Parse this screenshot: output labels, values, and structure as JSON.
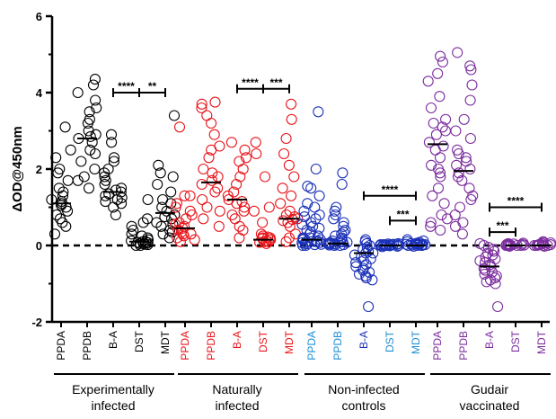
{
  "chart_data": {
    "type": "scatter",
    "ylabel": "ΔOD@450nm",
    "ylim": [
      -2,
      6
    ],
    "yticks": [
      "-2",
      "0",
      "2",
      "4",
      "6"
    ],
    "reference_line": 0,
    "colors": {
      "Experimentally infected": "#000000",
      "Naturally infected": "#e8151b",
      "Non-infected controls": "#1c32b8",
      "Gudair vaccinated": "#7b2d9e"
    },
    "label_colors": {
      "Experimentally infected": [
        "#000000",
        "#000000",
        "#000000",
        "#000000",
        "#000000"
      ],
      "Naturally infected": [
        "#e8151b",
        "#e8151b",
        "#e8151b",
        "#e8151b",
        "#e8151b"
      ],
      "Non-infected controls": [
        "#1d8fd6",
        "#1d8fd6",
        "#1c32b8",
        "#1d8fd6",
        "#1d8fd6"
      ],
      "Gudair vaccinated": [
        "#7b2d9e",
        "#7b2d9e",
        "#7b2d9e",
        "#7b2d9e",
        "#7b2d9e"
      ]
    },
    "groups": [
      {
        "name_lines": [
          "Experimentally",
          "infected"
        ],
        "color_key": "Experimentally infected",
        "series": [
          {
            "name": "PPDA",
            "median": 1.1,
            "values": [
              0.3,
              0.5,
              0.6,
              0.7,
              0.8,
              0.9,
              1.0,
              1.05,
              1.1,
              1.15,
              1.2,
              1.3,
              1.4,
              1.5,
              1.7,
              1.9,
              2.0,
              2.3,
              2.5,
              3.1
            ]
          },
          {
            "name": "PPDB",
            "median": 2.8,
            "values": [
              1.5,
              1.7,
              1.8,
              2.0,
              2.2,
              2.4,
              2.5,
              2.7,
              2.8,
              2.85,
              2.9,
              3.0,
              3.2,
              3.3,
              3.5,
              3.6,
              3.8,
              4.0,
              4.2,
              4.35
            ]
          },
          {
            "name": "B-A",
            "median": 1.4,
            "values": [
              0.8,
              1.0,
              1.1,
              1.2,
              1.3,
              1.35,
              1.4,
              1.45,
              1.5,
              1.6,
              1.7,
              1.8,
              1.9,
              2.0,
              2.2,
              2.3,
              2.7,
              2.9,
              1.25,
              1.15
            ]
          },
          {
            "name": "DST",
            "median": 0.1,
            "values": [
              0.0,
              0.02,
              0.05,
              0.05,
              0.08,
              0.1,
              0.1,
              0.12,
              0.15,
              0.2,
              0.25,
              0.3,
              0.4,
              0.5,
              0.6,
              0.7,
              1.2,
              0.0,
              0.03,
              0.07
            ]
          },
          {
            "name": "MDT",
            "median": 0.85,
            "values": [
              0.2,
              0.3,
              0.4,
              0.5,
              0.6,
              0.7,
              0.8,
              0.9,
              1.0,
              1.1,
              1.2,
              1.4,
              1.6,
              1.8,
              1.9,
              2.1,
              3.4,
              0.35,
              0.55,
              0.75
            ]
          }
        ],
        "brackets": [
          {
            "from": 2,
            "to": 3,
            "y": 4.0,
            "label": "****"
          },
          {
            "from": 3,
            "to": 4,
            "y": 4.0,
            "label": "**"
          }
        ]
      },
      {
        "name_lines": [
          "Naturally",
          "infected"
        ],
        "color_key": "Naturally infected",
        "series": [
          {
            "name": "PPDA",
            "median": 0.45,
            "values": [
              0.1,
              0.15,
              0.2,
              0.25,
              0.3,
              0.3,
              0.35,
              0.4,
              0.45,
              0.5,
              0.55,
              0.6,
              0.7,
              0.8,
              0.9,
              1.0,
              1.1,
              1.3,
              1.3,
              3.1
            ]
          },
          {
            "name": "PPDB",
            "median": 1.65,
            "values": [
              0.5,
              0.7,
              0.9,
              1.0,
              1.2,
              1.4,
              1.5,
              1.6,
              1.7,
              1.8,
              1.9,
              2.0,
              2.3,
              2.5,
              2.6,
              2.9,
              3.2,
              3.4,
              3.6,
              3.7,
              3.75
            ]
          },
          {
            "name": "B-A",
            "median": 1.2,
            "values": [
              0.2,
              0.4,
              0.5,
              0.7,
              0.8,
              0.9,
              1.0,
              1.1,
              1.2,
              1.3,
              1.4,
              1.6,
              1.8,
              2.0,
              2.2,
              2.3,
              2.5,
              2.7,
              1.15
            ]
          },
          {
            "name": "DST",
            "median": 0.15,
            "values": [
              0.05,
              0.08,
              0.1,
              0.12,
              0.15,
              0.15,
              0.18,
              0.2,
              0.22,
              0.25,
              0.3,
              0.6,
              0.9,
              1.0,
              1.8,
              2.4,
              2.7,
              0.1,
              0.2
            ]
          },
          {
            "name": "MDT",
            "median": 0.7,
            "values": [
              0.1,
              0.2,
              0.3,
              0.5,
              0.6,
              0.65,
              0.7,
              0.75,
              0.8,
              0.9,
              1.1,
              1.3,
              1.5,
              1.8,
              2.1,
              2.4,
              2.8,
              3.3,
              3.7,
              0.68
            ]
          }
        ],
        "brackets": [
          {
            "from": 2,
            "to": 3,
            "y": 4.1,
            "label": "****"
          },
          {
            "from": 3,
            "to": 4,
            "y": 4.1,
            "label": "***"
          }
        ]
      },
      {
        "name_lines": [
          "Non-infected",
          "controls"
        ],
        "color_key": "Non-infected controls",
        "series": [
          {
            "name": "PPDA",
            "median": 0.15,
            "values": [
              0.0,
              0.02,
              0.05,
              0.05,
              0.08,
              0.1,
              0.1,
              0.12,
              0.15,
              0.15,
              0.2,
              0.2,
              0.25,
              0.3,
              0.35,
              0.4,
              0.45,
              0.5,
              0.55,
              0.6,
              0.7,
              0.75,
              0.8,
              0.9,
              1.0,
              1.1,
              1.3,
              1.5,
              1.55,
              2.0,
              3.5,
              0.0,
              0.03,
              0.07,
              0.18
            ]
          },
          {
            "name": "PPDB",
            "median": 0.05,
            "values": [
              0.0,
              0.0,
              0.02,
              0.03,
              0.05,
              0.05,
              0.07,
              0.08,
              0.1,
              0.12,
              0.15,
              0.2,
              0.25,
              0.3,
              0.35,
              0.4,
              0.5,
              0.6,
              0.7,
              0.8,
              0.9,
              1.0,
              1.6,
              1.9,
              0.01,
              0.04,
              0.06,
              0.09
            ]
          },
          {
            "name": "B-A",
            "median": -0.2,
            "values": [
              -1.6,
              -0.9,
              -0.85,
              -0.8,
              -0.7,
              -0.6,
              -0.5,
              -0.45,
              -0.4,
              -0.35,
              -0.3,
              -0.25,
              -0.2,
              -0.2,
              -0.15,
              -0.1,
              -0.05,
              0.0,
              0.05,
              0.1,
              0.15,
              -0.55,
              -0.65,
              -0.75
            ]
          },
          {
            "name": "DST",
            "median": 0.0,
            "values": [
              -0.02,
              -0.01,
              0.0,
              0.0,
              0.0,
              0.0,
              0.01,
              0.01,
              0.02,
              0.02,
              0.03,
              0.03,
              0.04,
              0.05,
              -0.03,
              0.0,
              0.01,
              0.02,
              0.0,
              0.0
            ]
          },
          {
            "name": "MDT",
            "median": 0.0,
            "values": [
              -0.02,
              0.0,
              0.0,
              0.01,
              0.02,
              0.03,
              0.04,
              0.05,
              0.06,
              0.08,
              0.1,
              0.12,
              0.15,
              0.0,
              0.02,
              0.03,
              0.05,
              0.01,
              0.0,
              0.04
            ]
          }
        ],
        "brackets": [
          {
            "from": 2,
            "to": 4,
            "y": 1.3,
            "label": "****"
          },
          {
            "from": 3,
            "to": 4,
            "y": 0.65,
            "label": "***"
          }
        ]
      },
      {
        "name_lines": [
          "Gudair",
          "vaccinated"
        ],
        "color_key": "Gudair vaccinated",
        "series": [
          {
            "name": "PPDA",
            "median": 2.65,
            "values": [
              0.4,
              0.5,
              0.6,
              0.7,
              0.8,
              1.1,
              1.3,
              1.5,
              1.8,
              1.9,
              2.0,
              2.1,
              2.3,
              2.5,
              2.6,
              2.7,
              2.9,
              3.0,
              3.1,
              3.2,
              3.3,
              3.6,
              3.9,
              4.3,
              4.5,
              4.8,
              4.95
            ]
          },
          {
            "name": "PPDB",
            "median": 1.95,
            "values": [
              0.3,
              0.5,
              0.6,
              0.8,
              1.0,
              1.2,
              1.3,
              1.5,
              1.7,
              1.8,
              1.9,
              2.0,
              2.1,
              2.2,
              2.3,
              2.4,
              2.5,
              2.8,
              3.0,
              3.3,
              3.8,
              4.2,
              4.6,
              4.7,
              5.05
            ]
          },
          {
            "name": "B-A",
            "median": -0.55,
            "values": [
              -1.6,
              -1.0,
              -0.95,
              -0.9,
              -0.8,
              -0.7,
              -0.65,
              -0.6,
              -0.55,
              -0.5,
              -0.45,
              -0.4,
              -0.35,
              -0.3,
              -0.25,
              -0.2,
              -0.15,
              -0.1,
              -0.05,
              0.0,
              0.05,
              -0.75,
              -0.85
            ]
          },
          {
            "name": "DST",
            "median": 0.0,
            "values": [
              -0.02,
              0.0,
              0.0,
              0.01,
              0.02,
              0.03,
              0.04,
              0.05,
              0.06,
              0.0,
              0.01,
              0.02,
              0.0,
              0.03,
              0.0,
              0.01
            ]
          },
          {
            "name": "MDT",
            "median": 0.0,
            "values": [
              -0.02,
              0.0,
              0.0,
              0.01,
              0.02,
              0.03,
              0.05,
              0.07,
              0.08,
              0.1,
              0.0,
              0.02,
              0.04,
              0.0,
              0.01
            ]
          }
        ],
        "brackets": [
          {
            "from": 2,
            "to": 4,
            "y": 1.0,
            "label": "****"
          },
          {
            "from": 2,
            "to": 3,
            "y": 0.35,
            "label": "***"
          }
        ]
      }
    ]
  }
}
